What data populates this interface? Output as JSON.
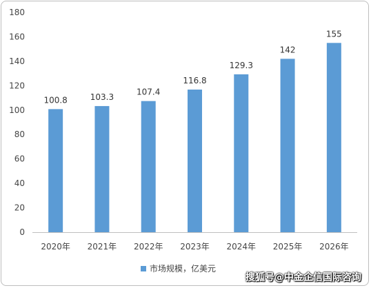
{
  "chart_data": {
    "type": "bar",
    "categories": [
      "2020年",
      "2021年",
      "2022年",
      "2023年",
      "2024年",
      "2025年",
      "2026年"
    ],
    "series": [
      {
        "name": "市场规模，亿美元",
        "values": [
          100.8,
          103.3,
          107.4,
          116.8,
          129.3,
          142,
          155
        ],
        "labels": [
          "100.8",
          "103.3",
          "107.4",
          "116.8",
          "129.3",
          "142",
          "155"
        ],
        "color": "#5b9bd5"
      }
    ],
    "yticks": [
      "0",
      "20",
      "40",
      "60",
      "80",
      "100",
      "120",
      "140",
      "160",
      "180"
    ],
    "ylim": [
      0,
      180
    ],
    "grid": false,
    "legend_position": "bottom",
    "title": "",
    "xlabel": "",
    "ylabel": ""
  },
  "legend": {
    "label": "市场规模，亿美元"
  },
  "watermark": {
    "text": "搜狐号@中金企信国际咨询"
  }
}
